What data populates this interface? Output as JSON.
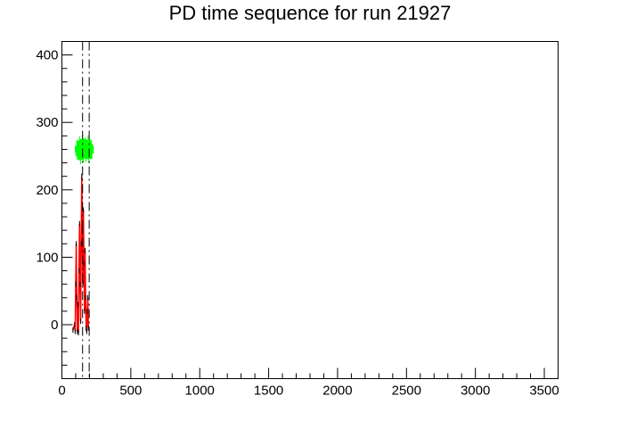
{
  "chart_data": {
    "type": "scatter",
    "title": "PD time sequence for run 21927",
    "xlabel": "",
    "ylabel": "",
    "xlim": [
      0,
      3600
    ],
    "ylim": [
      -80,
      420
    ],
    "x_major_ticks": [
      0,
      500,
      1000,
      1500,
      2000,
      2500,
      3000,
      3500
    ],
    "x_tick_labels": [
      "0",
      "500",
      "1000",
      "1500",
      "2000",
      "2500",
      "3000",
      "3500"
    ],
    "x_minor_step": 100,
    "y_major_ticks": [
      0,
      100,
      200,
      300,
      400
    ],
    "y_tick_labels": [
      "0",
      "100",
      "200",
      "300",
      "400"
    ],
    "y_minor_step": 20,
    "grid": false,
    "legend": false,
    "series": [
      {
        "style": "line",
        "color": "#ff0000",
        "x": [
          80,
          92,
          96,
          100,
          104,
          108,
          112,
          116,
          120,
          124,
          128,
          132,
          136,
          140,
          144,
          148,
          152,
          156,
          160,
          164,
          168,
          172,
          176,
          180,
          184,
          188,
          192
        ],
        "y": [
          -8,
          0,
          -10,
          60,
          120,
          40,
          -10,
          30,
          -12,
          80,
          150,
          60,
          5,
          120,
          220,
          140,
          60,
          170,
          90,
          20,
          110,
          40,
          -5,
          -10,
          20,
          40,
          -5
        ]
      },
      {
        "style": "markers",
        "color": "#00ff00",
        "x": [
          120,
          125,
          130,
          135,
          140,
          145,
          150,
          155,
          160,
          165,
          170,
          175,
          180,
          185,
          190,
          195,
          200,
          205
        ],
        "y": [
          260,
          255,
          268,
          250,
          262,
          256,
          270,
          252,
          264,
          258,
          266,
          253,
          261,
          257,
          269,
          251,
          263,
          259
        ]
      },
      {
        "style": "vline-dashdot",
        "color": "#000000",
        "x": [
          150,
          198
        ]
      }
    ]
  }
}
